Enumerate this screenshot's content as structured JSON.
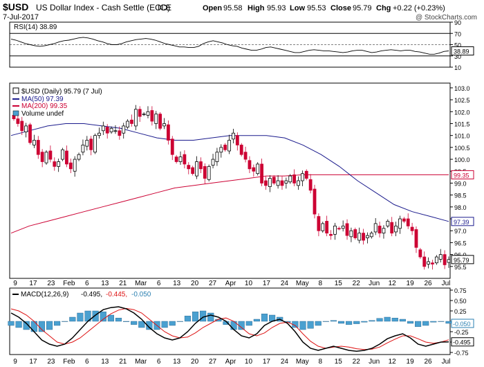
{
  "header": {
    "symbol": "$USD",
    "name": "US Dollar Index - Cash Settle (EOD)",
    "exchange": "ICE",
    "date": "7-Jul-2017",
    "copyright": "@ StockCharts.com",
    "quote": {
      "open_label": "Open",
      "open": "95.58",
      "high_label": "High",
      "high": "95.93",
      "low_label": "Low",
      "low": "95.53",
      "close_label": "Close",
      "close": "95.79",
      "chg_label": "Chg",
      "chg": "+0.22 (+0.23%)"
    }
  },
  "colors": {
    "up": "#000000",
    "down": "#cc0033",
    "ma50": "#1a1a8c",
    "ma200": "#cc0033",
    "macd": "#000000",
    "signal": "#dd1111",
    "histogram": "#4aa0d0"
  },
  "chart_data": [
    {
      "type": "line",
      "panel": "rsi",
      "title": "RSI(14) 38.89",
      "ylim": [
        10,
        90
      ],
      "ticks": [
        90,
        70,
        50,
        30,
        10
      ],
      "reference_lines": [
        70,
        50,
        30
      ],
      "last_value": "38.89",
      "values": [
        60,
        58,
        55,
        52,
        50,
        48,
        47,
        48,
        50,
        52,
        55,
        57,
        58,
        60,
        62,
        63,
        62,
        60,
        57,
        55,
        52,
        50,
        50,
        52,
        55,
        57,
        59,
        60,
        61,
        60,
        58,
        55,
        52,
        50,
        48,
        46,
        46,
        45,
        45,
        47,
        52,
        55,
        57,
        55,
        53,
        50,
        48,
        47,
        44,
        42,
        40,
        40,
        42,
        45,
        46,
        44,
        42,
        40,
        38,
        36,
        36,
        38,
        40,
        41,
        40,
        39,
        39,
        38,
        37,
        36,
        37,
        39,
        40,
        40,
        38,
        36,
        37,
        39,
        40,
        41,
        40,
        39,
        40,
        40,
        38,
        37,
        35,
        33,
        33,
        35,
        38,
        38.89
      ]
    },
    {
      "type": "candlestick",
      "panel": "price",
      "title": "$USD (Daily) 95.79 (7 Jul)",
      "legend": [
        "$USD (Daily) 95.79 (7 Jul)",
        "MA(50) 97.39",
        "MA(200) 99.35",
        "Volume undef"
      ],
      "ylim": [
        95.0,
        103.2
      ],
      "ticks": [
        95.5,
        96.0,
        96.5,
        97.0,
        97.5,
        98.0,
        98.5,
        99.0,
        99.5,
        100.0,
        100.5,
        101.0,
        101.5,
        102.0,
        102.5,
        103.0
      ],
      "x_labels": [
        "9",
        "17",
        "23",
        "Feb",
        "6",
        "13",
        "21",
        "Mar",
        "6",
        "13",
        "20",
        "27",
        "Apr",
        "10",
        "17",
        "24",
        "May",
        "8",
        "15",
        "22",
        "Jun",
        "12",
        "19",
        "26",
        "Jul"
      ],
      "closes": [
        101.7,
        101.5,
        101.2,
        101.4,
        100.7,
        100.8,
        100.2,
        99.9,
        100.3,
        100.0,
        99.7,
        99.9,
        100.4,
        99.8,
        99.6,
        100.0,
        100.2,
        100.6,
        100.8,
        100.4,
        101.0,
        101.1,
        101.4,
        101.1,
        101.3,
        101.2,
        101.0,
        101.4,
        101.6,
        101.5,
        102.1,
        101.8,
        101.9,
        102.0,
        101.6,
        101.9,
        101.3,
        101.5,
        100.8,
        100.2,
        99.9,
        100.1,
        99.8,
        99.6,
        99.4,
        99.9,
        99.6,
        99.2,
        99.7,
        100.0,
        100.3,
        100.5,
        100.4,
        100.8,
        101.1,
        100.6,
        100.2,
        100.0,
        99.6,
        99.5,
        99.8,
        99.0,
        98.9,
        99.2,
        99.0,
        99.1,
        98.9,
        99.1,
        99.3,
        99.0,
        99.1,
        99.4,
        99.2,
        98.7,
        97.7,
        97.0,
        97.3,
        96.9,
        96.8,
        97.2,
        97.1,
        97.2,
        96.8,
        97.0,
        96.7,
        96.9,
        96.6,
        96.8,
        96.9,
        97.3,
        96.9,
        97.1,
        97.4,
        96.9,
        97.2,
        97.5,
        97.4,
        97.2,
        97.0,
        96.3,
        95.9,
        95.5,
        95.7,
        95.6,
        95.9,
        96.0,
        95.57,
        95.79
      ],
      "ma50": {
        "name": "MA(50) 97.39",
        "last": "97.39",
        "values": [
          101.0,
          101.2,
          101.4,
          101.5,
          101.5,
          101.4,
          101.3,
          101.1,
          100.9,
          100.8,
          100.8,
          100.9,
          101.0,
          101.0,
          101.0,
          100.9,
          100.6,
          100.2,
          99.7,
          99.1,
          98.6,
          98.1,
          97.8,
          97.6,
          97.39
        ]
      },
      "ma200": {
        "name": "MA(200) 99.35",
        "last": "99.35",
        "values": [
          96.9,
          97.2,
          97.4,
          97.6,
          97.8,
          98.0,
          98.2,
          98.4,
          98.6,
          98.8,
          98.9,
          99.0,
          99.1,
          99.2,
          99.3,
          99.3,
          99.35,
          99.35,
          99.35,
          99.35,
          99.35,
          99.35,
          99.35,
          99.35,
          99.35
        ]
      },
      "last_close": "95.79"
    },
    {
      "type": "line",
      "panel": "macd",
      "title": "MACD(12,26,9) -0.495, -0.445, -0.050",
      "title_parts": [
        "MACD(12,26,9)",
        "-0.495,",
        "-0.445,",
        "-0.050"
      ],
      "ylim": [
        -0.8,
        0.8
      ],
      "ticks": [
        0.75,
        0.5,
        0.25,
        0.0,
        -0.25,
        -0.5,
        -0.75
      ],
      "macd": [
        0.2,
        0.1,
        -0.05,
        -0.25,
        -0.45,
        -0.55,
        -0.6,
        -0.55,
        -0.4,
        -0.2,
        0.0,
        0.15,
        0.28,
        0.33,
        0.35,
        0.3,
        0.2,
        0.05,
        -0.15,
        -0.3,
        -0.4,
        -0.45,
        -0.4,
        -0.25,
        -0.05,
        0.1,
        0.15,
        0.1,
        0.0,
        -0.2,
        -0.35,
        -0.4,
        -0.3,
        -0.1,
        0.0,
        0.05,
        -0.05,
        -0.25,
        -0.5,
        -0.65,
        -0.7,
        -0.65,
        -0.6,
        -0.65,
        -0.7,
        -0.72,
        -0.7,
        -0.65,
        -0.55,
        -0.42,
        -0.35,
        -0.3,
        -0.4,
        -0.55,
        -0.6,
        -0.55,
        -0.5,
        -0.495
      ],
      "signal": [
        0.3,
        0.25,
        0.15,
        0.0,
        -0.2,
        -0.35,
        -0.5,
        -0.55,
        -0.5,
        -0.4,
        -0.25,
        -0.1,
        0.05,
        0.18,
        0.27,
        0.31,
        0.28,
        0.2,
        0.05,
        -0.1,
        -0.25,
        -0.35,
        -0.4,
        -0.38,
        -0.28,
        -0.15,
        -0.05,
        0.05,
        0.08,
        0.0,
        -0.15,
        -0.3,
        -0.35,
        -0.28,
        -0.15,
        -0.05,
        -0.02,
        -0.1,
        -0.3,
        -0.48,
        -0.6,
        -0.65,
        -0.62,
        -0.6,
        -0.62,
        -0.66,
        -0.68,
        -0.67,
        -0.62,
        -0.52,
        -0.43,
        -0.35,
        -0.35,
        -0.42,
        -0.5,
        -0.53,
        -0.5,
        -0.445
      ],
      "last_macd": "-0.495",
      "last_signal": "-0.445",
      "last_hist": "-0.050"
    }
  ]
}
